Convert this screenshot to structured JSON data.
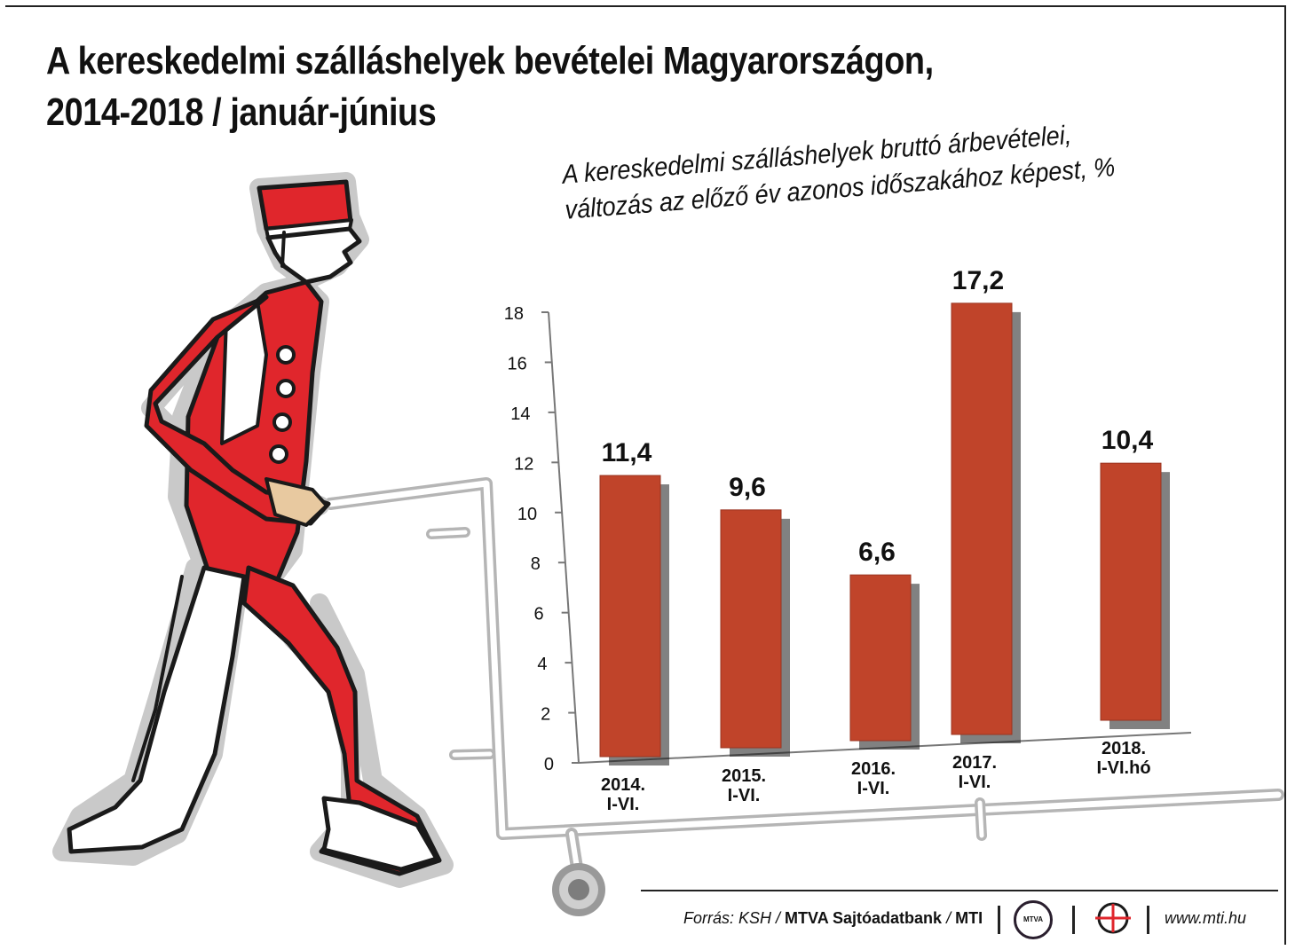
{
  "title_line1": "A kereskedelmi szálláshelyek bevételei Magyarországon,",
  "title_line2_bold": "2014-2018 /",
  "title_line2_light": "január-június",
  "subtitle_line1": "A kereskedelmi szálláshelyek bruttó árbevételei,",
  "subtitle_line2": "változás az előző év azonos időszakához képest, %",
  "footer": {
    "source_prefix": "Forrás: KSH / ",
    "source_bold": "MTVA Sajtóadatbank",
    "source_sep": " / ",
    "source_bold2": "MTI",
    "mtva_logo": "MTVA",
    "website": "www.mti.hu"
  },
  "colors": {
    "bar": "#c0442a",
    "figure_red": "#e0262c",
    "outline": "#1a1a1a",
    "halo": "#c8c8c8"
  },
  "chart_data": {
    "type": "bar",
    "categories": [
      [
        "2014.",
        "I-VI."
      ],
      [
        "2015.",
        "I-VI."
      ],
      [
        "2016.",
        "I-VI."
      ],
      [
        "2017.",
        "I-VI."
      ],
      [
        "2018.",
        "I-VI.hó"
      ]
    ],
    "values": [
      11.4,
      9.6,
      6.6,
      17.2,
      10.4
    ],
    "value_labels": [
      "11,4",
      "9,6",
      "6,6",
      "17,2",
      "10,4"
    ],
    "ylim": [
      0,
      18
    ],
    "yticks": [
      0,
      2,
      4,
      6,
      8,
      10,
      12,
      14,
      16,
      18
    ],
    "title": "A kereskedelmi szálláshelyek bruttó árbevételei, változás az előző év azonos időszakához képest, %"
  }
}
